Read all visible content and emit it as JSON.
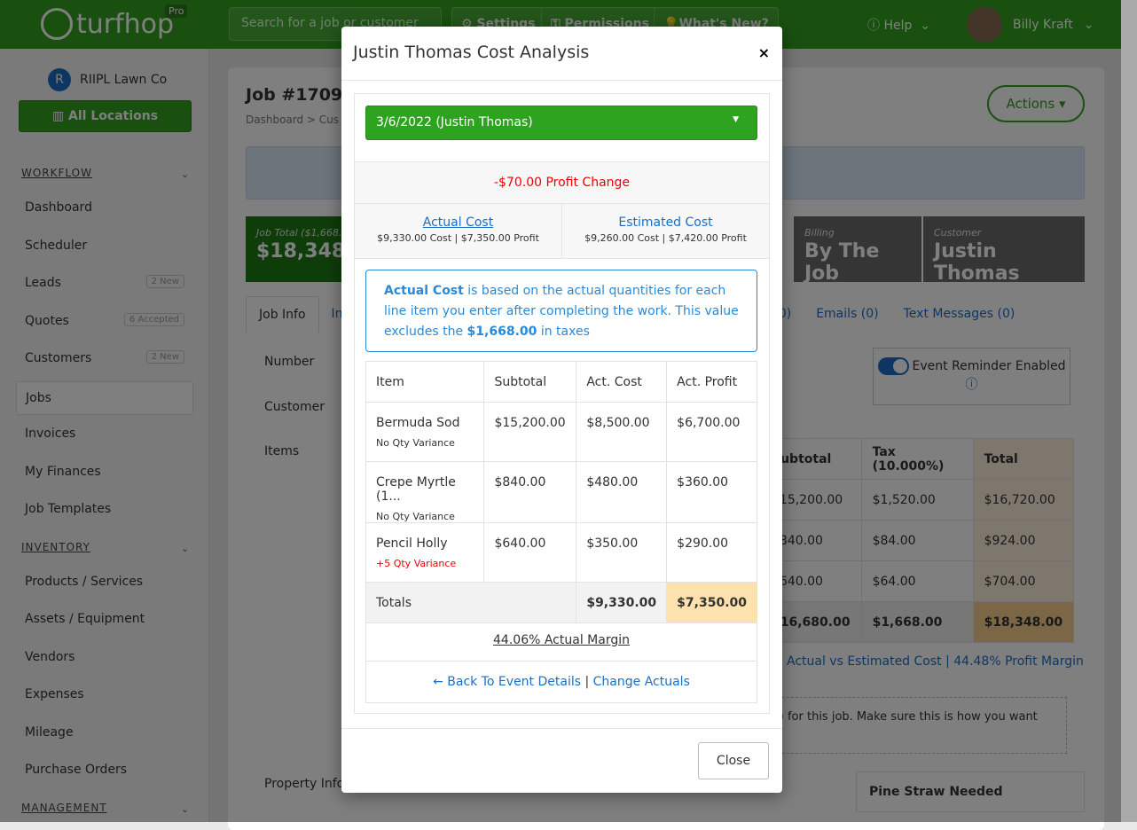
{
  "header": {
    "brand": "turfhop",
    "pro": "Pro",
    "search_placeholder": "Search for a job or customer",
    "settings": "Settings",
    "permissions": "Permissions",
    "whats_new": "What's New?",
    "help": "Help",
    "user": "Billy Kraft"
  },
  "sidebar": {
    "org_initial": "R",
    "org": "RIIPL Lawn Co",
    "all_locations": "All Locations",
    "sections": [
      {
        "label": "WORKFLOW"
      },
      {
        "label": "INVENTORY"
      },
      {
        "label": "MANAGEMENT"
      }
    ],
    "workflow": [
      {
        "label": "Dashboard"
      },
      {
        "label": "Scheduler"
      },
      {
        "label": "Leads",
        "badge": "2 New"
      },
      {
        "label": "Quotes",
        "badge": "6 Accepted"
      },
      {
        "label": "Customers",
        "badge": "2 New"
      },
      {
        "label": "Jobs"
      },
      {
        "label": "Invoices"
      },
      {
        "label": "My Finances"
      },
      {
        "label": "Job Templates"
      }
    ],
    "inventory": [
      {
        "label": "Products / Services"
      },
      {
        "label": "Assets / Equipment"
      },
      {
        "label": "Vendors"
      },
      {
        "label": "Expenses"
      },
      {
        "label": "Mileage"
      },
      {
        "label": "Purchase Orders"
      }
    ]
  },
  "page": {
    "title": "Job #17093",
    "crumb": "Dashboard  >  Cus",
    "actions": "Actions ▾",
    "stats": {
      "job_total_label": "Job Total ($1,668.",
      "job_total": "$18,348.",
      "billing_label": "Billing",
      "billing": "By The Job",
      "customer_label": "Customer",
      "customer": "Justin Thomas"
    },
    "tabs": [
      "Job Info",
      "Inv",
      "0)",
      "Emails (0)",
      "Text Messages (0)"
    ],
    "labels": {
      "number": "Number",
      "customer": "Customer",
      "items": "Items",
      "property": "Property Info"
    },
    "reminder": "Event Reminder Enabled",
    "items_table": {
      "headers": [
        "Subtotal",
        "Tax (10.000%)",
        "Total"
      ],
      "rows": [
        [
          "$15,200.00",
          "$1,520.00",
          "$16,720.00"
        ],
        [
          "$840.00",
          "$84.00",
          "$924.00"
        ],
        [
          "$640.00",
          "$64.00",
          "$704.00"
        ]
      ],
      "totals": [
        "$16,680.00",
        "$1,668.00",
        "$18,348.00"
      ]
    },
    "cost_link": "Actual vs Estimated Cost | 44.48% Profit Margin",
    "notice": "s) for this job. Make sure this is how you want",
    "property_header": "Pine Straw Needed"
  },
  "modal": {
    "title": "Justin Thomas Cost Analysis",
    "close_x": "×",
    "selected_event": "3/6/2022 (Justin Thomas)",
    "profit_change": "-$70.00 Profit Change",
    "actual": {
      "title": "Actual Cost",
      "summary": "$9,330.00 Cost | $7,350.00 Profit"
    },
    "estimated": {
      "title": "Estimated Cost",
      "summary": "$9,260.00 Cost | $7,420.00 Profit"
    },
    "info": {
      "bold": "Actual Cost",
      "text1": " is based on the actual quantities for each line item you enter after completing the work. This value excludes the ",
      "amount": "$1,668.00",
      "text2": " in taxes"
    },
    "table": {
      "headers": [
        "Item",
        "Subtotal",
        "Act. Cost",
        "Act. Profit"
      ],
      "rows": [
        {
          "item": "Bermuda Sod",
          "variance": "No Qty Variance",
          "subtotal": "$15,200.00",
          "cost": "$8,500.00",
          "profit": "$6,700.00"
        },
        {
          "item": "Crepe Myrtle (1...",
          "variance": "No Qty Variance",
          "subtotal": "$840.00",
          "cost": "$480.00",
          "profit": "$360.00"
        },
        {
          "item": "Pencil Holly",
          "variance": "+5 Qty Variance",
          "subtotal": "$640.00",
          "cost": "$350.00",
          "profit": "$290.00"
        }
      ],
      "totals": {
        "label": "Totals",
        "cost": "$9,330.00",
        "profit": "$7,350.00"
      }
    },
    "margin": "44.06% Actual Margin",
    "back": "← Back To Event Details",
    "sep": "|",
    "change": "Change Actuals",
    "close": "Close"
  },
  "colors": {
    "brand_green": "#33a020",
    "link_blue": "#1a6fc4",
    "negative": "#e00000",
    "highlight": "#fde2ad"
  }
}
